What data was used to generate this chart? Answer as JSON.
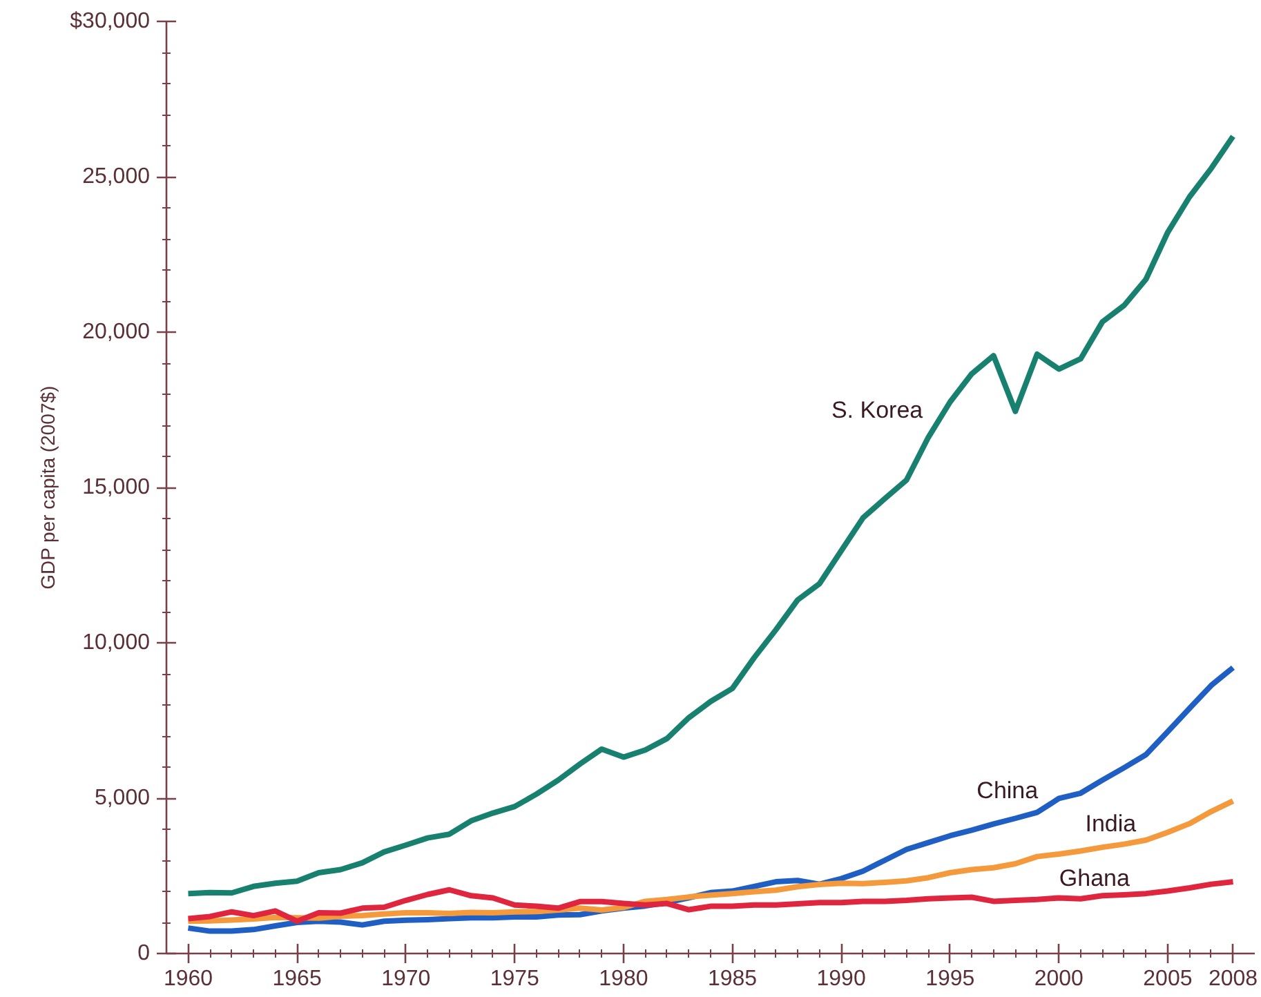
{
  "chart_data": {
    "type": "line",
    "ylabel": "GDP per capita (2007$)",
    "x": [
      1960,
      1961,
      1962,
      1963,
      1964,
      1965,
      1966,
      1967,
      1968,
      1969,
      1970,
      1971,
      1972,
      1973,
      1974,
      1975,
      1976,
      1977,
      1978,
      1979,
      1980,
      1981,
      1982,
      1983,
      1984,
      1985,
      1986,
      1987,
      1988,
      1989,
      1990,
      1991,
      1992,
      1993,
      1994,
      1995,
      1996,
      1997,
      1998,
      1999,
      2000,
      2001,
      2002,
      2003,
      2004,
      2005,
      2006,
      2007,
      2008
    ],
    "series": [
      {
        "name": "S. Korea",
        "color": "#17806f",
        "values": [
          1930,
          1960,
          1950,
          2160,
          2260,
          2330,
          2600,
          2700,
          2920,
          3270,
          3490,
          3720,
          3840,
          4270,
          4520,
          4730,
          5130,
          5580,
          6100,
          6580,
          6320,
          6550,
          6920,
          7590,
          8110,
          8530,
          9520,
          10420,
          11380,
          11900,
          12960,
          14020,
          14640,
          15240,
          16610,
          17750,
          18660,
          19240,
          17450,
          19290,
          18810,
          19140,
          20330,
          20860,
          21700,
          23210,
          24350,
          25270,
          26300
        ]
      },
      {
        "name": "China",
        "color": "#1f5fc4",
        "values": [
          820,
          720,
          720,
          770,
          890,
          1000,
          1040,
          1010,
          920,
          1040,
          1070,
          1090,
          1120,
          1150,
          1150,
          1180,
          1180,
          1240,
          1250,
          1370,
          1460,
          1530,
          1640,
          1790,
          1960,
          2010,
          2160,
          2310,
          2350,
          2230,
          2410,
          2650,
          3000,
          3350,
          3570,
          3790,
          3970,
          4170,
          4350,
          4540,
          4990,
          5160,
          5580,
          5980,
          6400,
          7140,
          7890,
          8630,
          9200
        ]
      },
      {
        "name": "India",
        "color": "#f59a3c",
        "values": [
          1040,
          1050,
          1080,
          1110,
          1160,
          1150,
          1140,
          1200,
          1220,
          1270,
          1310,
          1310,
          1290,
          1320,
          1310,
          1340,
          1350,
          1400,
          1460,
          1400,
          1480,
          1680,
          1740,
          1820,
          1880,
          1930,
          1990,
          2040,
          2150,
          2220,
          2260,
          2250,
          2290,
          2340,
          2440,
          2600,
          2700,
          2760,
          2890,
          3120,
          3200,
          3300,
          3420,
          3520,
          3650,
          3900,
          4180,
          4570,
          4910
        ]
      },
      {
        "name": "Ghana",
        "color": "#e0263e",
        "values": [
          1120,
          1190,
          1340,
          1220,
          1370,
          1040,
          1310,
          1300,
          1460,
          1490,
          1710,
          1900,
          2050,
          1860,
          1790,
          1560,
          1520,
          1460,
          1670,
          1670,
          1610,
          1560,
          1610,
          1410,
          1520,
          1520,
          1560,
          1560,
          1600,
          1640,
          1640,
          1680,
          1680,
          1710,
          1760,
          1790,
          1810,
          1680,
          1710,
          1740,
          1790,
          1760,
          1860,
          1890,
          1930,
          2010,
          2110,
          2230,
          2310
        ]
      }
    ],
    "xlim": [
      1959,
      2009
    ],
    "ylim": [
      0,
      30000
    ],
    "xticks": [
      1960,
      {
        "value": 1961,
        "label": null
      },
      {
        "value": 1962,
        "label": null
      },
      {
        "value": 1963,
        "label": null
      },
      {
        "value": 1964,
        "label": null
      },
      1965,
      {
        "value": 1966,
        "label": null
      },
      {
        "value": 1967,
        "label": null
      },
      {
        "value": 1968,
        "label": null
      },
      {
        "value": 1969,
        "label": null
      },
      1970,
      {
        "value": 1971,
        "label": null
      },
      {
        "value": 1972,
        "label": null
      },
      {
        "value": 1973,
        "label": null
      },
      {
        "value": 1974,
        "label": null
      },
      1975,
      {
        "value": 1976,
        "label": null
      },
      {
        "value": 1977,
        "label": null
      },
      {
        "value": 1978,
        "label": null
      },
      {
        "value": 1979,
        "label": null
      },
      1980,
      {
        "value": 1981,
        "label": null
      },
      {
        "value": 1982,
        "label": null
      },
      {
        "value": 1983,
        "label": null
      },
      {
        "value": 1984,
        "label": null
      },
      1985,
      {
        "value": 1986,
        "label": null
      },
      {
        "value": 1987,
        "label": null
      },
      {
        "value": 1988,
        "label": null
      },
      {
        "value": 1989,
        "label": null
      },
      1990,
      {
        "value": 1991,
        "label": null
      },
      {
        "value": 1992,
        "label": null
      },
      {
        "value": 1993,
        "label": null
      },
      {
        "value": 1994,
        "label": null
      },
      1995,
      {
        "value": 1996,
        "label": null
      },
      {
        "value": 1997,
        "label": null
      },
      {
        "value": 1998,
        "label": null
      },
      {
        "value": 1999,
        "label": null
      },
      2000,
      {
        "value": 2001,
        "label": null
      },
      {
        "value": 2002,
        "label": null
      },
      {
        "value": 2003,
        "label": null
      },
      {
        "value": 2004,
        "label": null
      },
      2005,
      {
        "value": 2006,
        "label": null
      },
      {
        "value": 2007,
        "label": null
      },
      2008
    ],
    "yticks": [
      0,
      {
        "value": 1000,
        "label": null
      },
      {
        "value": 2000,
        "label": null
      },
      {
        "value": 3000,
        "label": null
      },
      {
        "value": 4000,
        "label": null
      },
      {
        "value": 5000,
        "label": "5,000"
      },
      {
        "value": 6000,
        "label": null
      },
      {
        "value": 7000,
        "label": null
      },
      {
        "value": 8000,
        "label": null
      },
      {
        "value": 9000,
        "label": null
      },
      {
        "value": 10000,
        "label": "10,000"
      },
      {
        "value": 11000,
        "label": null
      },
      {
        "value": 12000,
        "label": null
      },
      {
        "value": 13000,
        "label": null
      },
      {
        "value": 14000,
        "label": null
      },
      {
        "value": 15000,
        "label": "15,000"
      },
      {
        "value": 16000,
        "label": null
      },
      {
        "value": 17000,
        "label": null
      },
      {
        "value": 18000,
        "label": null
      },
      {
        "value": 19000,
        "label": null
      },
      {
        "value": 20000,
        "label": "20,000"
      },
      {
        "value": 21000,
        "label": null
      },
      {
        "value": 22000,
        "label": null
      },
      {
        "value": 23000,
        "label": null
      },
      {
        "value": 24000,
        "label": null
      },
      {
        "value": 25000,
        "label": "25,000"
      },
      {
        "value": 26000,
        "label": null
      },
      {
        "value": 27000,
        "label": null
      },
      {
        "value": 28000,
        "label": null
      },
      {
        "value": 29000,
        "label": null
      },
      {
        "value": 30000,
        "label": "$30,000"
      }
    ]
  }
}
